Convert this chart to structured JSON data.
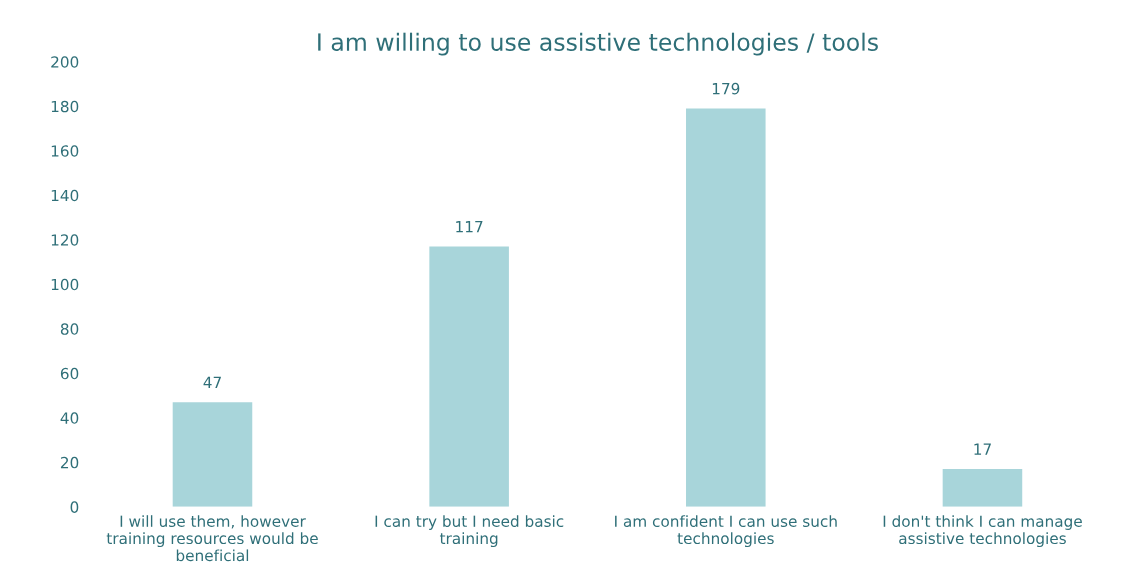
{
  "chart_data": {
    "type": "bar",
    "title": "I am willing to use assistive technologies / tools",
    "categories": [
      "I will use them, however\ntraining resources would be\nbeneficial",
      "I can try but I need basic\ntraining",
      "I am confident I can use such\ntechnologies",
      "I don't think I can manage\nassistive technologies"
    ],
    "values": [
      47,
      117,
      179,
      17
    ],
    "color": "#a8d5da",
    "ylim": [
      0,
      200
    ],
    "yticks": [
      0,
      20,
      40,
      60,
      80,
      100,
      120,
      140,
      160,
      180,
      200
    ],
    "grid": false,
    "data_labels": true
  }
}
